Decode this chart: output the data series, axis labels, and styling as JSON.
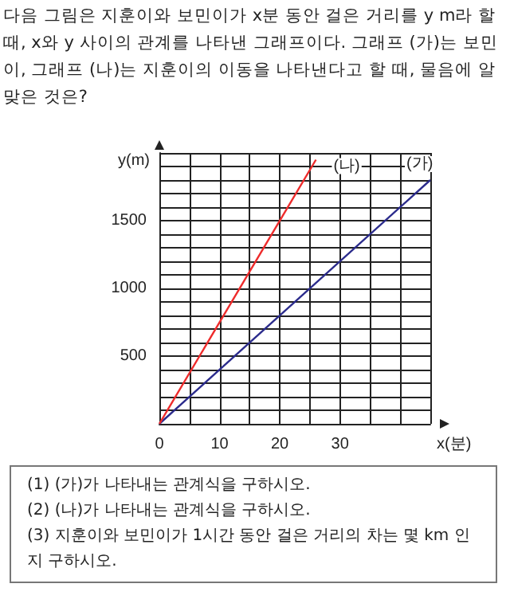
{
  "chart_data": {
    "type": "line",
    "title": "다음 그림은 지훈이와 보민이가 x분 동안 걸은 거리를 y m라 할 때, x와 y 사이의 관계를 나타낸 그래프이다. 그래프 (가)는 보민이, 그래프 (나)는 지훈이의 이동을 나타낸다고 할 때, 물음에 알맞은 것은?",
    "xlabel": "x(분)",
    "ylabel": "y(m)",
    "xlim": [
      0,
      45
    ],
    "ylim": [
      0,
      2000
    ],
    "xticks": [
      0,
      {
        "value": 5,
        "label": null
      },
      10,
      {
        "value": 15,
        "label": null
      },
      20,
      {
        "value": 25,
        "label": null
      },
      30,
      {
        "value": 35,
        "label": null
      },
      {
        "value": 40,
        "label": null
      },
      {
        "value": 45,
        "label": null
      }
    ],
    "yticks": [
      {
        "value": 0,
        "label": null
      },
      {
        "value": 100,
        "label": null
      },
      {
        "value": 200,
        "label": null
      },
      {
        "value": 300,
        "label": null
      },
      {
        "value": 400,
        "label": null
      },
      500,
      {
        "value": 600,
        "label": null
      },
      {
        "value": 700,
        "label": null
      },
      {
        "value": 800,
        "label": null
      },
      {
        "value": 900,
        "label": null
      },
      1000,
      {
        "value": 1100,
        "label": null
      },
      {
        "value": 1200,
        "label": null
      },
      {
        "value": 1300,
        "label": null
      },
      {
        "value": 1400,
        "label": null
      },
      1500,
      {
        "value": 1600,
        "label": null
      },
      {
        "value": 1700,
        "label": null
      },
      {
        "value": 1800,
        "label": null
      },
      {
        "value": 1900,
        "label": null
      },
      {
        "value": 2000,
        "label": null
      }
    ],
    "grid": true,
    "legend": false,
    "marker": "none",
    "line_style": "solid",
    "series": [
      {
        "name": "(가)",
        "color": "#2b2b8c",
        "x": [
          0,
          45
        ],
        "values": [
          0,
          1800
        ]
      },
      {
        "name": "(나)",
        "color": "#ee2b2b",
        "x": [
          0,
          26
        ],
        "values": [
          0,
          1950
        ]
      }
    ],
    "annotations": [
      "(1) (가)가 나타내는 관계식을 구하시오.",
      "(2) (나)가 나타내는 관계식을 구하시오.",
      "(3) 지훈이와 보민이가 1시간 동안 걸은 거리의 차는 몇 km 인지 구하시오."
    ]
  }
}
